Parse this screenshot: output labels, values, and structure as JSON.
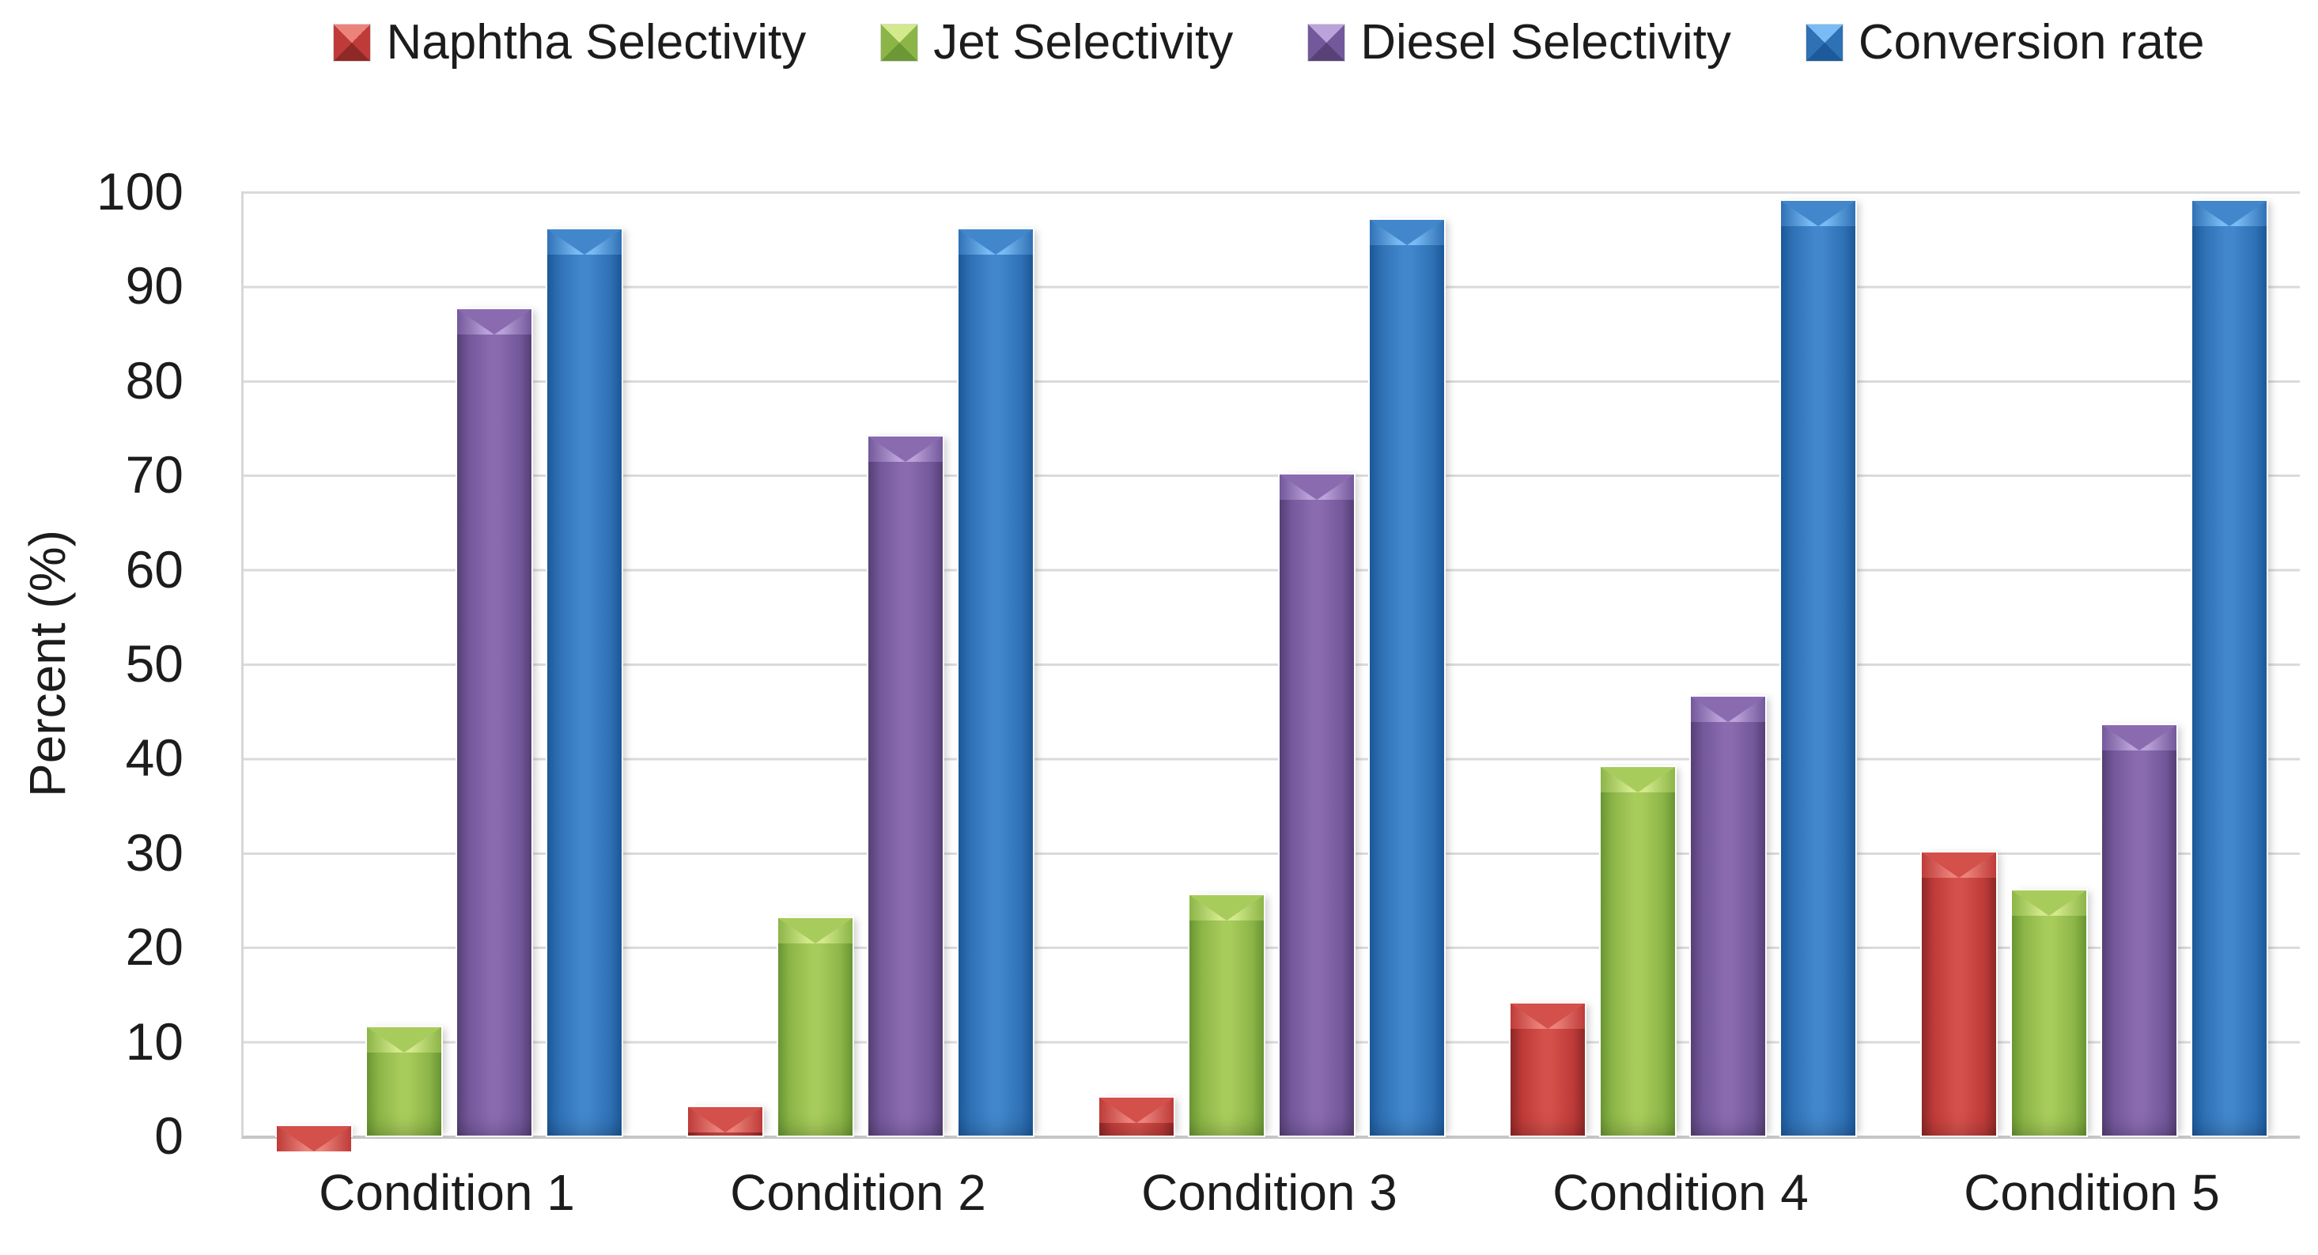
{
  "chart_data": {
    "type": "bar",
    "title": "",
    "ylabel": "Percent (%)",
    "ylim": [
      0,
      100
    ],
    "yticks": [
      0,
      10,
      20,
      30,
      40,
      50,
      60,
      70,
      80,
      90,
      100
    ],
    "grid": true,
    "legend_position": "top",
    "categories": [
      "Condition 1",
      "Condition 2",
      "Condition 3",
      "Condition 4",
      "Condition 5"
    ],
    "series": [
      {
        "name": "Naphtha Selectivity",
        "values": [
          1,
          3,
          4,
          14,
          30
        ],
        "color": "#BE3B39",
        "shade_dark": "#8F2927",
        "shade_mid": "#BE3B39",
        "shade_body": "#D4504B",
        "shade_cap": "#EC837B"
      },
      {
        "name": "Jet Selectivity",
        "values": [
          11.5,
          23,
          25.5,
          39,
          26
        ],
        "color": "#8CB547",
        "shade_dark": "#6B9834",
        "shade_mid": "#8CB547",
        "shade_body": "#A8CC5C",
        "shade_cap": "#D3E98C"
      },
      {
        "name": "Diesel Selectivity",
        "values": [
          87.5,
          74,
          70,
          46.5,
          43.5
        ],
        "color": "#73589B",
        "shade_dark": "#584177",
        "shade_mid": "#73589B",
        "shade_body": "#8A6BB0",
        "shade_cap": "#BBA3DA"
      },
      {
        "name": "Conversion rate",
        "values": [
          96,
          96,
          97,
          99,
          99
        ],
        "color": "#2F71B5",
        "shade_dark": "#1D5A9B",
        "shade_mid": "#2F71B5",
        "shade_body": "#4287CC",
        "shade_cap": "#79BCF5"
      }
    ]
  },
  "colors": {
    "background": "#FFFFFF",
    "gridline": "#DADADA",
    "axis": "#C6C6C6",
    "text": "#1C1C1C"
  }
}
